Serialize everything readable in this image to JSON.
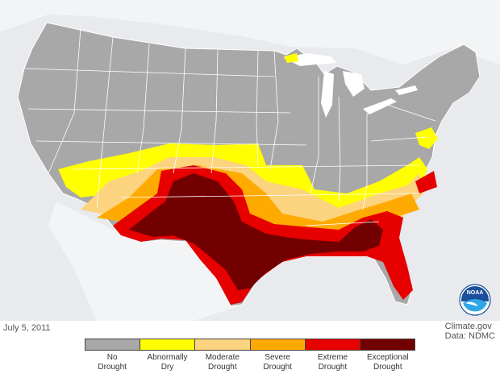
{
  "date": "July 5, 2011",
  "credit": {
    "line1": "Climate.gov",
    "line2": "Data: NDMC"
  },
  "logo": {
    "text": "NOAA",
    "icon": "noaa-logo-icon"
  },
  "legend": [
    {
      "label_line1": "No",
      "label_line2": "Drought",
      "color": "#a8a8a8"
    },
    {
      "label_line1": "Abnormally",
      "label_line2": "Dry",
      "color": "#ffff00"
    },
    {
      "label_line1": "Moderate",
      "label_line2": "Drought",
      "color": "#fcd37f"
    },
    {
      "label_line1": "Severe",
      "label_line2": "Drought",
      "color": "#ffaa00"
    },
    {
      "label_line1": "Extreme",
      "label_line2": "Drought",
      "color": "#e60000"
    },
    {
      "label_line1": "Exceptional",
      "label_line2": "Drought",
      "color": "#730000"
    }
  ],
  "colors": {
    "land": "#a8a8a8",
    "water": "#ffffff",
    "background": "#e8eaed",
    "borders": "#ffffff"
  }
}
